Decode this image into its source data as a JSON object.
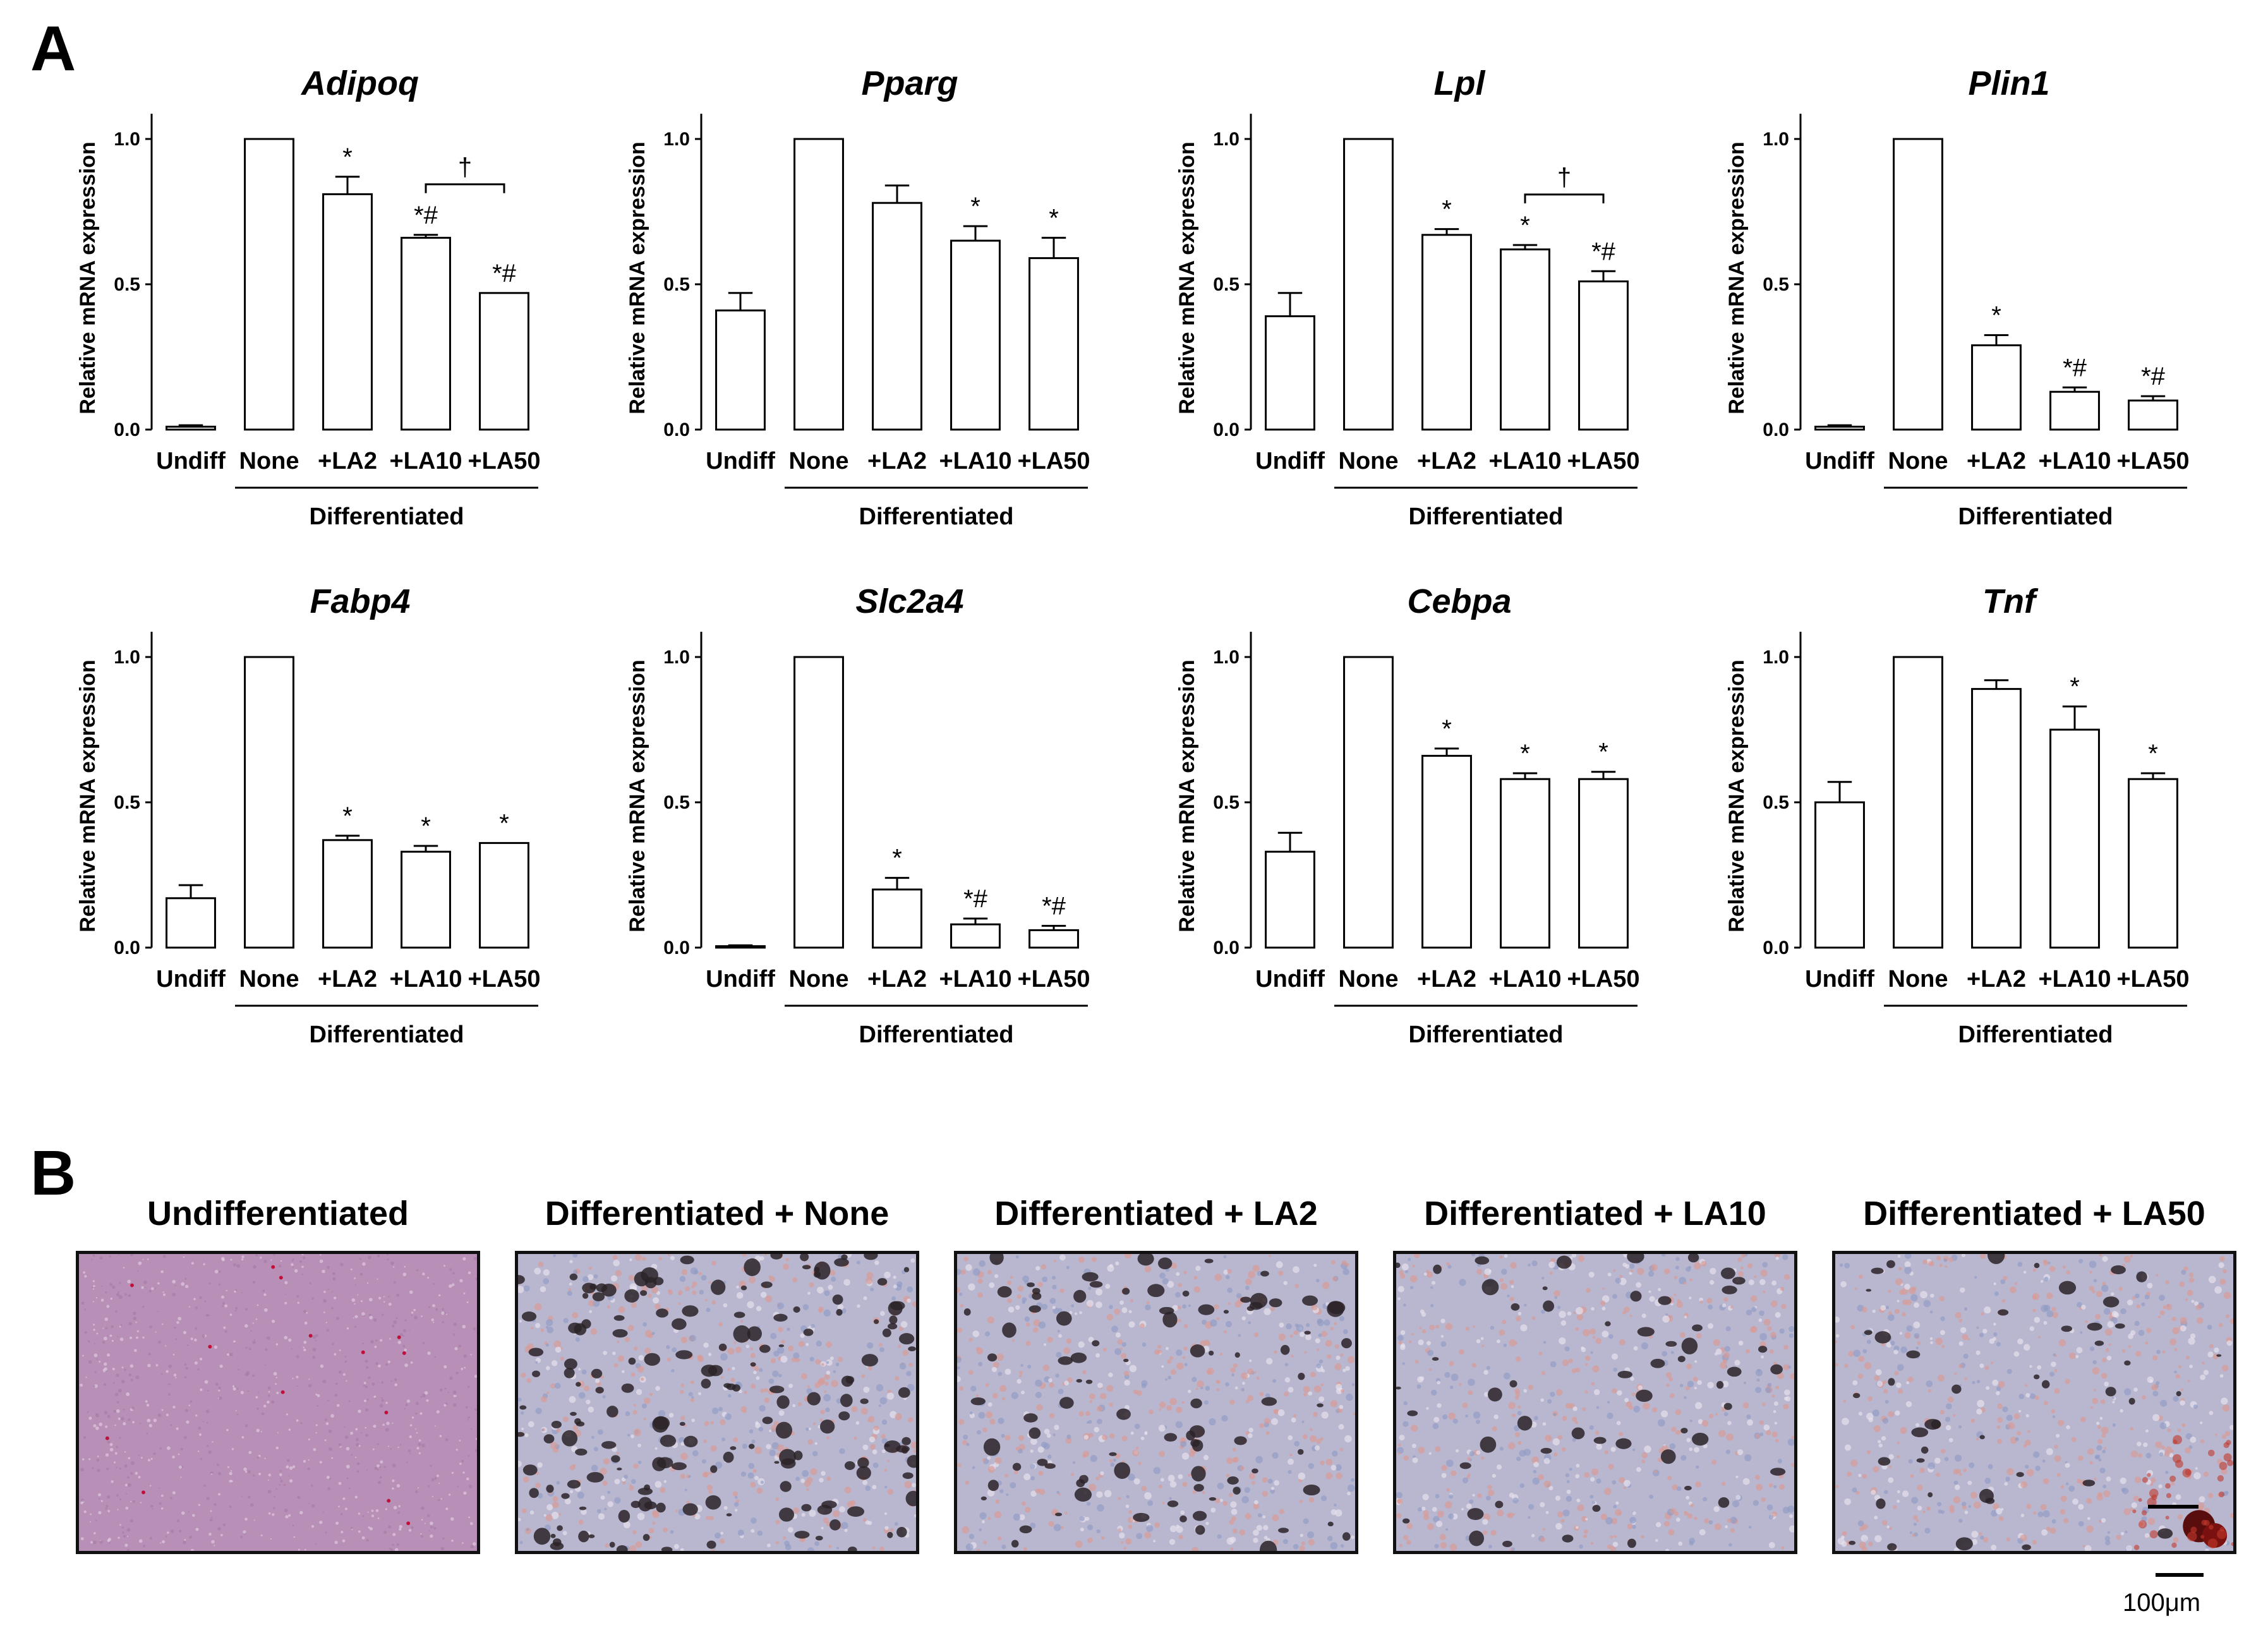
{
  "panel_a": {
    "letter": "A"
  },
  "panel_b": {
    "letter": "B",
    "images": [
      {
        "title": "Undifferentiated"
      },
      {
        "title": "Differentiated + None"
      },
      {
        "title": "Differentiated + LA2"
      },
      {
        "title": "Differentiated + LA10"
      },
      {
        "title": "Differentiated + LA50"
      }
    ],
    "scale_label": "100μm"
  },
  "chart_data": [
    {
      "type": "bar",
      "title": "Adipoq",
      "ylabel": "Relative mRNA expression",
      "group_label": "Differentiated",
      "categories": [
        "Undiff",
        "None",
        "+LA2",
        "+LA10",
        "+LA50"
      ],
      "values": [
        0.01,
        1.0,
        0.81,
        0.66,
        0.47
      ],
      "errors": [
        0.005,
        0,
        0.06,
        0.01,
        0
      ],
      "annotations": [
        "",
        "",
        "*",
        "*#",
        "*#"
      ],
      "ylim": [
        0,
        1.0
      ],
      "yticks": [
        "0.0",
        "0.5",
        "1.0"
      ],
      "bracket": {
        "from": 3,
        "to": 4,
        "label": "†"
      }
    },
    {
      "type": "bar",
      "title": "Pparg",
      "ylabel": "Relative mRNA expression",
      "group_label": "Differentiated",
      "categories": [
        "Undiff",
        "None",
        "+LA2",
        "+LA10",
        "+LA50"
      ],
      "values": [
        0.41,
        1.0,
        0.78,
        0.65,
        0.59
      ],
      "errors": [
        0.06,
        0,
        0.06,
        0.05,
        0.07
      ],
      "annotations": [
        "",
        "",
        "",
        "*",
        "*"
      ],
      "ylim": [
        0,
        1.0
      ],
      "yticks": [
        "0.0",
        "0.5",
        "1.0"
      ]
    },
    {
      "type": "bar",
      "title": "Lpl",
      "ylabel": "Relative mRNA expression",
      "group_label": "Differentiated",
      "categories": [
        "Undiff",
        "None",
        "+LA2",
        "+LA10",
        "+LA50"
      ],
      "values": [
        0.39,
        1.0,
        0.67,
        0.62,
        0.51
      ],
      "errors": [
        0.08,
        0,
        0.02,
        0.015,
        0.035
      ],
      "annotations": [
        "",
        "",
        "*",
        "*",
        "*#"
      ],
      "ylim": [
        0,
        1.0
      ],
      "yticks": [
        "0.0",
        "0.5",
        "1.0"
      ],
      "bracket": {
        "from": 3,
        "to": 4,
        "label": "†"
      }
    },
    {
      "type": "bar",
      "title": "Plin1",
      "ylabel": "Relative mRNA expression",
      "group_label": "Differentiated",
      "categories": [
        "Undiff",
        "None",
        "+LA2",
        "+LA10",
        "+LA50"
      ],
      "values": [
        0.01,
        1.0,
        0.29,
        0.13,
        0.1
      ],
      "errors": [
        0.005,
        0,
        0.035,
        0.015,
        0.015
      ],
      "annotations": [
        "",
        "",
        "*",
        "*#",
        "*#"
      ],
      "ylim": [
        0,
        1.0
      ],
      "yticks": [
        "0.0",
        "0.5",
        "1.0"
      ]
    },
    {
      "type": "bar",
      "title": "Fabp4",
      "ylabel": "Relative mRNA expression",
      "group_label": "Differentiated",
      "categories": [
        "Undiff",
        "None",
        "+LA2",
        "+LA10",
        "+LA50"
      ],
      "values": [
        0.17,
        1.0,
        0.37,
        0.33,
        0.36
      ],
      "errors": [
        0.045,
        0,
        0.015,
        0.02,
        0
      ],
      "annotations": [
        "",
        "",
        "*",
        "*",
        "*"
      ],
      "ylim": [
        0,
        1.0
      ],
      "yticks": [
        "0.0",
        "0.5",
        "1.0"
      ]
    },
    {
      "type": "bar",
      "title": "Slc2a4",
      "ylabel": "Relative mRNA expression",
      "group_label": "Differentiated",
      "categories": [
        "Undiff",
        "None",
        "+LA2",
        "+LA10",
        "+LA50"
      ],
      "values": [
        0.005,
        1.0,
        0.2,
        0.08,
        0.06
      ],
      "errors": [
        0.003,
        0,
        0.04,
        0.02,
        0.015
      ],
      "annotations": [
        "",
        "",
        "*",
        "*#",
        "*#"
      ],
      "ylim": [
        0,
        1.0
      ],
      "yticks": [
        "0.0",
        "0.5",
        "1.0"
      ]
    },
    {
      "type": "bar",
      "title": "Cebpa",
      "ylabel": "Relative mRNA expression",
      "group_label": "Differentiated",
      "categories": [
        "Undiff",
        "None",
        "+LA2",
        "+LA10",
        "+LA50"
      ],
      "values": [
        0.33,
        1.0,
        0.66,
        0.58,
        0.58
      ],
      "errors": [
        0.065,
        0,
        0.025,
        0.02,
        0.025
      ],
      "annotations": [
        "",
        "",
        "*",
        "*",
        "*"
      ],
      "ylim": [
        0,
        1.0
      ],
      "yticks": [
        "0.0",
        "0.5",
        "1.0"
      ]
    },
    {
      "type": "bar",
      "title": "Tnf",
      "ylabel": "Relative mRNA expression",
      "group_label": "Differentiated",
      "categories": [
        "Undiff",
        "None",
        "+LA2",
        "+LA10",
        "+LA50"
      ],
      "values": [
        0.5,
        1.0,
        0.89,
        0.75,
        0.58
      ],
      "errors": [
        0.07,
        0,
        0.03,
        0.08,
        0.02
      ],
      "annotations": [
        "",
        "",
        "",
        "*",
        "*"
      ],
      "ylim": [
        0,
        1.0
      ],
      "yticks": [
        "0.0",
        "0.5",
        "1.0"
      ]
    }
  ]
}
